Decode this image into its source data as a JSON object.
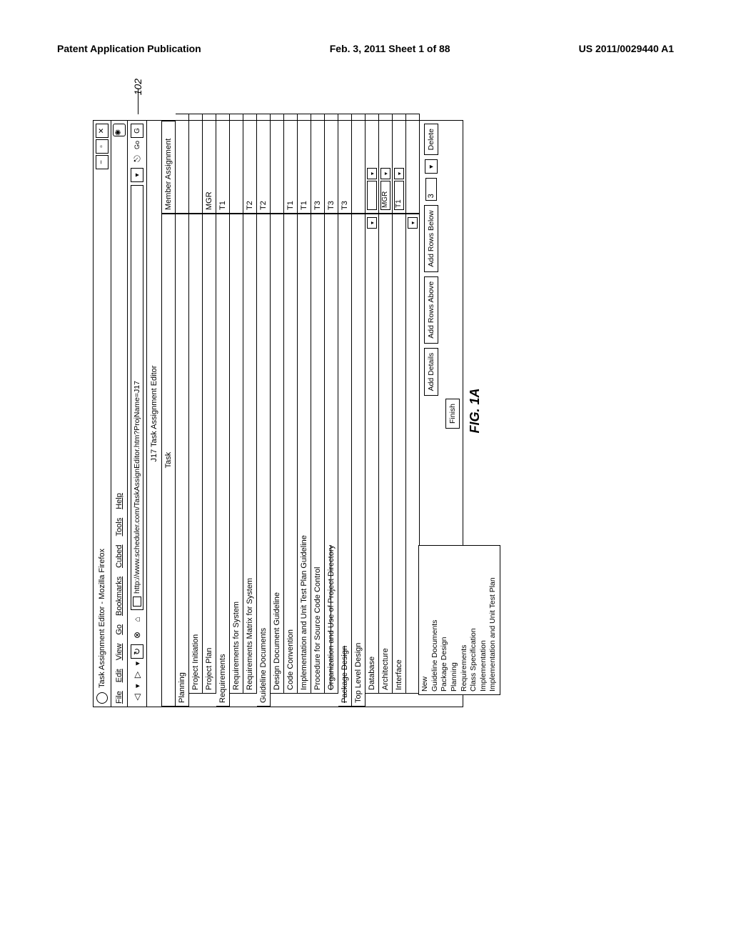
{
  "page_header": {
    "left": "Patent Application Publication",
    "center": "Feb. 3, 2011  Sheet 1 of 88",
    "right": "US 2011/0029440 A1"
  },
  "window": {
    "title": "Task Assignment Editor - Mozilla Firefox"
  },
  "menu": {
    "items": [
      "File",
      "Edit",
      "View",
      "Go",
      "Bookmarks",
      "Cubed",
      "Tools",
      "Help"
    ]
  },
  "toolbar": {
    "url": "http://www.scheduler.com/TaskAssignEditor.htm?ProjName=J17"
  },
  "editor": {
    "title": "J17 Task Assignment Editor",
    "columns": {
      "task": "Task",
      "member": "Member Assignment"
    }
  },
  "rows": [
    {
      "indent": 0,
      "task": "Planning",
      "member": "",
      "dd": false,
      "strike": false
    },
    {
      "indent": 1,
      "task": "Project Initiation",
      "member": "",
      "dd": false,
      "strike": false
    },
    {
      "indent": 1,
      "task": "Project Plan",
      "member": "MGR",
      "dd": false,
      "strike": false
    },
    {
      "indent": 0,
      "task": "Requirements",
      "member": "T1",
      "dd": false,
      "strike": false
    },
    {
      "indent": 1,
      "task": "Requirements for System",
      "member": "",
      "dd": false,
      "strike": false
    },
    {
      "indent": 1,
      "task": "Requirements Matrix for System",
      "member": "T2",
      "dd": false,
      "strike": false
    },
    {
      "indent": 0,
      "task": "Guideline Documents",
      "member": "T2",
      "dd": false,
      "strike": false
    },
    {
      "indent": 1,
      "task": "Design Document Guideline",
      "member": "",
      "dd": false,
      "strike": false
    },
    {
      "indent": 1,
      "task": "Code Convention",
      "member": "T1",
      "dd": false,
      "strike": false
    },
    {
      "indent": 1,
      "task": "Implementation and Unit Test Plan Guideline",
      "member": "T1",
      "dd": false,
      "strike": false
    },
    {
      "indent": 1,
      "task": "Procedure for Source Code Control",
      "member": "T3",
      "dd": false,
      "strike": false
    },
    {
      "indent": 1,
      "task": "Organization and Use of Project Directory",
      "member": "T3",
      "dd": false,
      "strike": true
    },
    {
      "indent": 0,
      "task": "Package Design",
      "member": "T3",
      "dd": false,
      "strike": true
    },
    {
      "indent": 0,
      "task": "Top Level Design",
      "member": "",
      "dd": false,
      "strike": false
    },
    {
      "indent": 1,
      "task": "Database",
      "member": "",
      "dd": true,
      "strike": false,
      "mval": "",
      "mdd": true
    },
    {
      "indent": 1,
      "task": "Architecture",
      "member": "MGR",
      "dd": false,
      "strike": false,
      "mval": "MGR",
      "mdd": true
    },
    {
      "indent": 1,
      "task": "Interface",
      "member": "T1",
      "dd": false,
      "strike": false,
      "mval": "T1",
      "mdd": true
    },
    {
      "indent": 1,
      "task": "",
      "member": "",
      "dd": true,
      "strike": false
    }
  ],
  "dropdown_options": [
    "New",
    "Guideline Documents",
    "Package Design",
    "Planning",
    "Requirements",
    "Class Specification",
    "Implementation",
    "Implementation and Unit Test Plan"
  ],
  "buttons": {
    "add_details": "Add Details",
    "add_above": "Add Rows Above",
    "add_below": "Add Rows Below",
    "delete": "Delete",
    "finish": "Finish",
    "row_count": "3"
  },
  "figure_label": "FIG. 1A",
  "callout": "102"
}
